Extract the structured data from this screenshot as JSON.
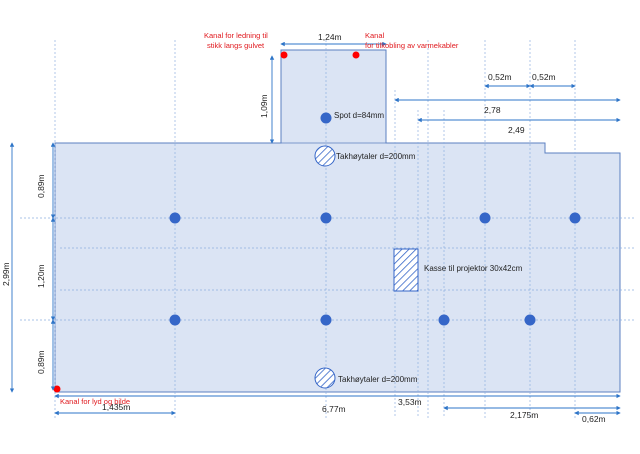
{
  "colors": {
    "room_fill": "#dbe4f4",
    "room_stroke": "#5b7fc1",
    "dim_line": "#2e75c8",
    "grid_line": "#8fb0e0",
    "spot": "#3566c8",
    "channel_marker": "#ff0000",
    "red_text": "#e0191e"
  },
  "dimensions": {
    "niche_width": "1,24m",
    "niche_depth": "1,09m",
    "total_height": "2,99m",
    "top_band": "0,89m",
    "middle_band": "1,20m",
    "bottom_band": "0,89m",
    "left_offset": "1,435m",
    "total_width": "6,77m",
    "bottom_right_a": "3,53m",
    "bottom_right_b": "2,175m",
    "bottom_right_c": "0,62m",
    "spacing_a": "0,52m",
    "spacing_b": "0,52m",
    "right_run_a": "2,78",
    "right_run_b": "2,49"
  },
  "labels": {
    "channel_cable": "Kanal for ledning til stikk langs gulvet",
    "channel_cable_line1": "Kanal for ledning til",
    "channel_cable_line2": "stikk langs gulvet",
    "channel_heat_line1": "Kanal",
    "channel_heat_line2": "for tilkobling av varmekabler",
    "spot": "Spot d=84mm",
    "speaker_top": "Takhøytaler d=200mm",
    "speaker_bottom": "Takhøytaler d=200mm",
    "projector_box": "Kasse til projektor 30x42cm",
    "channel_picture": "Kanal for lyd og bilde"
  },
  "icons": {
    "spot": "filled-circle",
    "speaker": "hatched-circle",
    "projector_box": "hatched-rectangle",
    "channel": "red-dot"
  }
}
